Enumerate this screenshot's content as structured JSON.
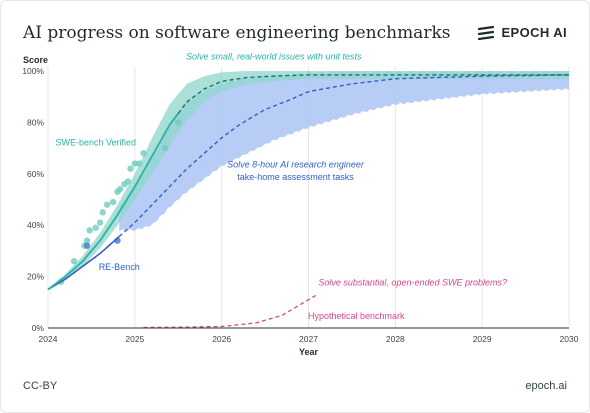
{
  "header": {
    "title": "AI progress on software engineering benchmarks",
    "brand": "EPOCH AI",
    "brand_icon": "epoch-logo-icon"
  },
  "footer": {
    "license": "CC-BY",
    "site": "epoch.ai"
  },
  "colors": {
    "swe_bench": "#2bb3a3",
    "swe_bench_band": "#8fd6cc",
    "re_bench": "#2f5fc9",
    "re_bench_band": "#aac4f3",
    "hypothetical": "#d3468e",
    "grid": "#e4e7ea",
    "axis": "#2a3338"
  },
  "chart_data": {
    "type": "line",
    "xlabel": "Year",
    "ylabel": "Score",
    "xlim": [
      2024,
      2030
    ],
    "ylim": [
      0,
      100
    ],
    "x_ticks": [
      "2024",
      "2025",
      "2026",
      "2027",
      "2028",
      "2029",
      "2030"
    ],
    "y_ticks": [
      "0%",
      "20%",
      "40%",
      "60%",
      "80%",
      "100%"
    ],
    "grid": "vertical",
    "series": [
      {
        "name": "SWE-bench Verified",
        "color": "#2bb3a3",
        "fit_x": [
          2024.0,
          2024.2,
          2024.4,
          2024.6,
          2024.8,
          2025.0,
          2025.2,
          2025.4,
          2025.6,
          2025.8,
          2026.0,
          2026.3,
          2026.6,
          2027.0,
          2028.0,
          2029.0,
          2030.0
        ],
        "fit_y": [
          15,
          20,
          26,
          34,
          44,
          55,
          67,
          79,
          88,
          93,
          96,
          97.5,
          98,
          98.5,
          98.5,
          98.5,
          98.5
        ],
        "projection_start": 2025.5,
        "points_x": [
          2024.15,
          2024.3,
          2024.42,
          2024.45,
          2024.48,
          2024.55,
          2024.6,
          2024.63,
          2024.68,
          2024.75,
          2024.8,
          2024.83,
          2024.88,
          2024.92,
          2024.95,
          2025.0,
          2025.05,
          2025.1,
          2025.35,
          2025.5
        ],
        "points_y": [
          18,
          26,
          32,
          34,
          38,
          39,
          41,
          45,
          48,
          49,
          53,
          54,
          56,
          57,
          62,
          64,
          64,
          68,
          70,
          80
        ],
        "band_upper": [
          15,
          21,
          28,
          37,
          48,
          60,
          74,
          87,
          95,
          98,
          99.5,
          100,
          100,
          100,
          100,
          100,
          100
        ],
        "band_lower": [
          15,
          19,
          24,
          31,
          40,
          50,
          60,
          71,
          81,
          88,
          92,
          95,
          96,
          97,
          97,
          97,
          97
        ]
      },
      {
        "name": "RE-Bench",
        "color": "#2f5fc9",
        "fit_x": [
          2024.0,
          2024.2,
          2024.4,
          2024.6,
          2024.8,
          2025.0,
          2025.2,
          2025.4,
          2025.6,
          2025.8,
          2026.0,
          2026.2,
          2026.5,
          2026.8,
          2027.0,
          2027.5,
          2028.0,
          2029.0,
          2030.0
        ],
        "fit_y": [
          15,
          19,
          24,
          29,
          35,
          41,
          48,
          55,
          62,
          68,
          74,
          79,
          85,
          89,
          92,
          95,
          97,
          98,
          98.5
        ],
        "projection_start": 2024.82,
        "points_x": [
          2024.45,
          2024.8
        ],
        "points_y": [
          32,
          34
        ],
        "band_x": [
          2024.82,
          2025.0,
          2025.2,
          2025.4,
          2025.6,
          2025.8,
          2026.0,
          2026.3,
          2026.6,
          2027.0,
          2027.5,
          2028.0,
          2029.0,
          2030.0
        ],
        "band_upper": [
          47,
          55,
          66,
          80,
          88,
          92,
          95,
          97,
          98,
          99,
          99.5,
          99.5,
          99.5,
          99.5
        ],
        "band_lower": [
          38,
          38,
          40,
          47,
          53,
          58,
          63,
          68,
          73,
          78,
          83,
          87,
          91,
          93
        ]
      },
      {
        "name": "Hypothetical benchmark",
        "color": "#d3468e",
        "fit_x": [
          2025.1,
          2025.5,
          2026.0,
          2026.4,
          2026.7,
          2026.9,
          2027.1
        ],
        "fit_y": [
          0.2,
          0.3,
          0.6,
          2,
          5,
          9,
          13
        ],
        "projection_start": 2025.1
      }
    ],
    "annotations": [
      {
        "text": "Solve small, real-world issues with unit tests",
        "color": "#2bb3a3",
        "x": 2026.6,
        "y": 104.5
      },
      {
        "text": "SWE-bench Verified",
        "color": "#2bb3a3",
        "x": 2024.55,
        "y": 71
      },
      {
        "text": "Solve 8-hour AI research engineer",
        "color": "#2f5fc9",
        "x": 2026.85,
        "y": 62.5
      },
      {
        "text": "take-home assessment tasks",
        "color": "#2f5fc9",
        "x": 2026.85,
        "y": 57.5
      },
      {
        "text": "RE-Bench",
        "color": "#2f5fc9",
        "x": 2024.82,
        "y": 22.5
      },
      {
        "text": "Solve substantial, open-ended SWE problems?",
        "color": "#d3468e",
        "x": 2028.2,
        "y": 16.5
      },
      {
        "text": "Hypothetical benchmark",
        "color": "#d3468e",
        "x": 2027.55,
        "y": 3.5
      }
    ]
  }
}
